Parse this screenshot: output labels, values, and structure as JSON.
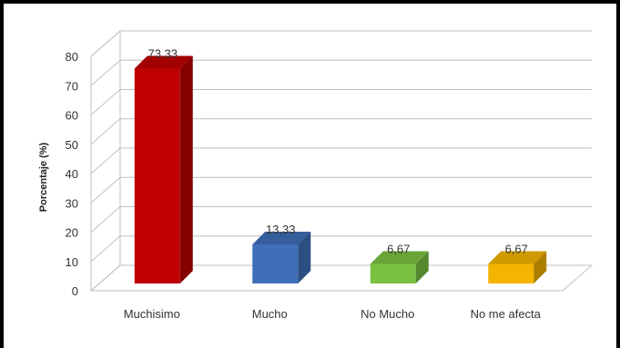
{
  "chart_data": {
    "type": "bar",
    "categories": [
      "Muchisimo",
      "Mucho",
      "No Mucho",
      "No me afecta"
    ],
    "values": [
      73.33,
      13.33,
      6.67,
      6.67
    ],
    "data_labels": [
      "73,33",
      "13,33",
      "6,67",
      "6,67"
    ],
    "ylabel": "Porcentaje (%)",
    "ylim": [
      0,
      80
    ],
    "yticks": [
      "0",
      "10",
      "20",
      "30",
      "40",
      "50",
      "60",
      "70",
      "80"
    ],
    "grid": true,
    "style": "3d-column",
    "colors": [
      "#c00000",
      "#3f6fb8",
      "#7ac142",
      "#f5b400"
    ]
  }
}
